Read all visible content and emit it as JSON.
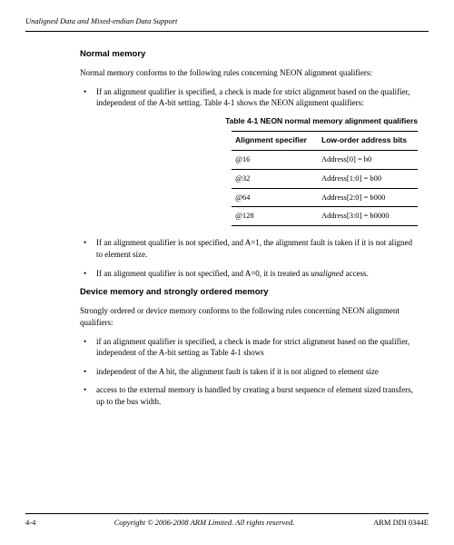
{
  "header": {
    "chapter_title": "Unaligned Data and Mixed-endian Data Support"
  },
  "section1": {
    "title": "Normal memory",
    "intro": "Normal memory conforms to the following rules concerning NEON alignment qualifiers:",
    "bullet1": "If an alignment qualifier is specified, a check is made for strict alignment based on the qualifier, independent of the A-bit setting. Table 4-1 shows the NEON alignment qualifiers:",
    "table": {
      "caption": "Table 4-1 NEON normal memory alignment qualifiers",
      "col1": "Alignment specifier",
      "col2": "Low-order address bits",
      "rows": [
        {
          "c1": "@16",
          "c2": "Address[0] = b0"
        },
        {
          "c1": "@32",
          "c2": "Address[1:0] = b00"
        },
        {
          "c1": "@64",
          "c2": "Address[2:0] = b000"
        },
        {
          "c1": "@128",
          "c2": "Address[3:0] = b0000"
        }
      ]
    },
    "bullet2": "If an alignment qualifier is not specified, and A=1, the alignment fault is taken if it is not aligned to element size.",
    "bullet3_a": "If an alignment qualifier is not specified, and A=0, it is treated as ",
    "bullet3_i": "unaligned",
    "bullet3_b": " access."
  },
  "section2": {
    "title": "Device memory and strongly ordered memory",
    "intro": "Strongly ordered or device memory conforms to the following rules concerning NEON alignment qualifiers:",
    "bullet1": "if an alignment qualifier is specified, a check is made for strict alignment based on the qualifier, independent of the A-bit setting as Table 4-1 shows",
    "bullet2": "independent of the A bit, the alignment fault is taken if it is not aligned to element size",
    "bullet3": "access to the external memory is handled by creating a burst sequence of element sized transfers, up to the bus width."
  },
  "footer": {
    "page": "4-4",
    "copyright": "Copyright © 2006-2008 ARM Limited. All rights reserved.",
    "docid": "ARM DDI 0344E"
  }
}
